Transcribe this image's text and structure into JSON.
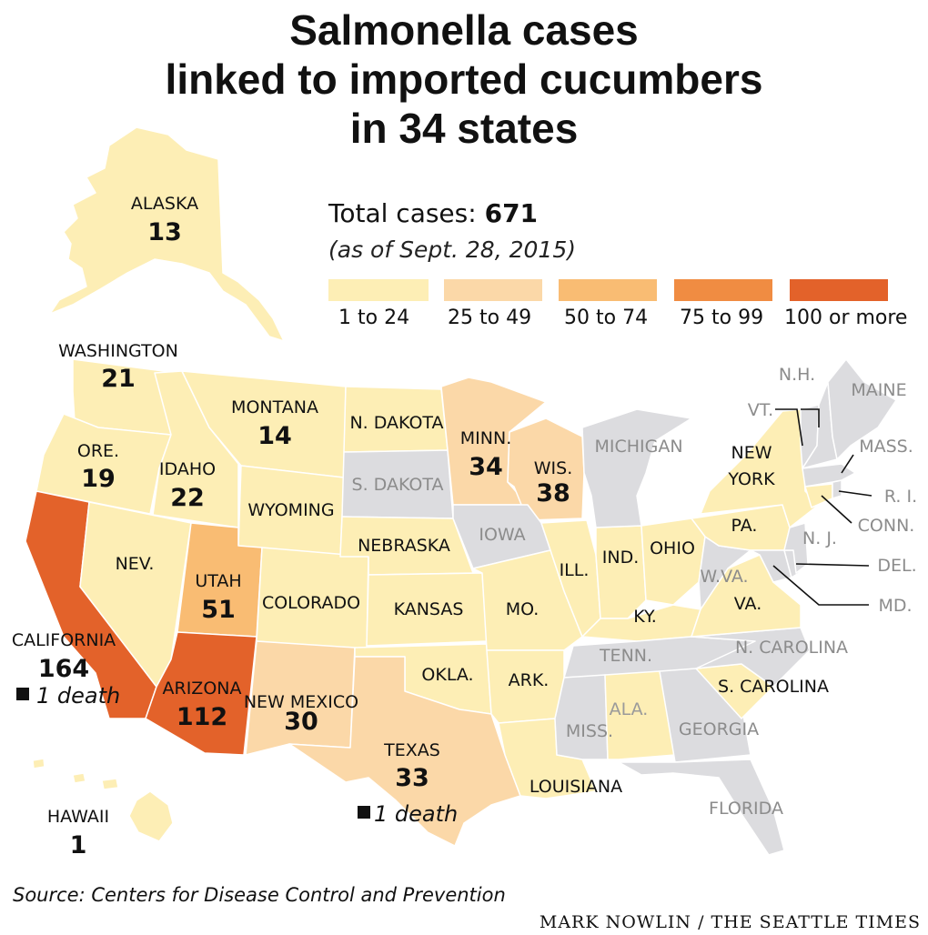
{
  "title": {
    "line1": "Salmonella cases",
    "line2": "linked to imported cucumbers",
    "line3": "in 34 states"
  },
  "total": {
    "label": "Total cases:",
    "value": "671",
    "as_of": "(as of Sept. 28, 2015)"
  },
  "legend": [
    {
      "label": "1 to 24",
      "color": "#fdeeb5"
    },
    {
      "label": "25 to 49",
      "color": "#fbd8a8"
    },
    {
      "label": "50 to 74",
      "color": "#f9bc73"
    },
    {
      "label": "75 to 99",
      "color": "#f08c42"
    },
    {
      "label": "100 or more",
      "color": "#e3622a"
    }
  ],
  "no_case_color": "#dcdcdf",
  "states": [
    {
      "id": "AK",
      "name": "ALASKA",
      "cases": 13,
      "shown": "13"
    },
    {
      "id": "WA",
      "name": "WASHINGTON",
      "cases": 21,
      "shown": "21"
    },
    {
      "id": "OR",
      "name": "ORE.",
      "cases": 19,
      "shown": "19"
    },
    {
      "id": "ID",
      "name": "IDAHO",
      "cases": 22,
      "shown": "22"
    },
    {
      "id": "MT",
      "name": "MONTANA",
      "cases": 14,
      "shown": "14"
    },
    {
      "id": "CA",
      "name": "CALIFORNIA",
      "cases": 164,
      "shown": "164",
      "note": "1 death"
    },
    {
      "id": "AZ",
      "name": "ARIZONA",
      "cases": 112,
      "shown": "112"
    },
    {
      "id": "UT",
      "name": "UTAH",
      "cases": 51,
      "shown": "51"
    },
    {
      "id": "NM",
      "name": "NEW MEXICO",
      "cases": 30,
      "shown": "30"
    },
    {
      "id": "TX",
      "name": "TEXAS",
      "cases": 33,
      "shown": "33",
      "note": "1 death"
    },
    {
      "id": "MN",
      "name": "MINN.",
      "cases": 34,
      "shown": "34"
    },
    {
      "id": "WI",
      "name": "WIS.",
      "cases": 38,
      "shown": "38"
    },
    {
      "id": "HI",
      "name": "HAWAII",
      "cases": 1,
      "shown": "1"
    },
    {
      "id": "NV",
      "name": "NEV.",
      "category": "1 to 24"
    },
    {
      "id": "WY",
      "name": "WYOMING",
      "category": "1 to 24"
    },
    {
      "id": "CO",
      "name": "COLORADO",
      "category": "1 to 24"
    },
    {
      "id": "ND",
      "name": "N. DAKOTA",
      "category": "1 to 24"
    },
    {
      "id": "NE",
      "name": "NEBRASKA",
      "category": "1 to 24"
    },
    {
      "id": "KS",
      "name": "KANSAS",
      "category": "1 to 24"
    },
    {
      "id": "OK",
      "name": "OKLA.",
      "category": "1 to 24"
    },
    {
      "id": "MO",
      "name": "MO.",
      "category": "1 to 24"
    },
    {
      "id": "AR",
      "name": "ARK.",
      "category": "1 to 24"
    },
    {
      "id": "LA",
      "name": "LOUISIANA",
      "category": "1 to 24"
    },
    {
      "id": "IL",
      "name": "ILL.",
      "category": "1 to 24"
    },
    {
      "id": "IN",
      "name": "IND.",
      "category": "1 to 24"
    },
    {
      "id": "OH",
      "name": "OHIO",
      "category": "1 to 24"
    },
    {
      "id": "KY",
      "name": "KY.",
      "category": "1 to 24"
    },
    {
      "id": "VA",
      "name": "VA.",
      "category": "1 to 24"
    },
    {
      "id": "PA",
      "name": "PA.",
      "category": "1 to 24"
    },
    {
      "id": "NY",
      "name": "NEW YORK",
      "category": "1 to 24"
    },
    {
      "id": "AL",
      "name": "ALA.",
      "category": "1 to 24"
    },
    {
      "id": "SC",
      "name": "S. CAROLINA",
      "category": "1 to 24"
    },
    {
      "id": "SD",
      "name": "S. DAKOTA",
      "category": "none"
    },
    {
      "id": "IA",
      "name": "IOWA",
      "category": "none"
    },
    {
      "id": "MI",
      "name": "MICHIGAN",
      "category": "none"
    },
    {
      "id": "TN",
      "name": "TENN.",
      "category": "none"
    },
    {
      "id": "MS",
      "name": "MISS.",
      "category": "none"
    },
    {
      "id": "GA",
      "name": "GEORGIA",
      "category": "none"
    },
    {
      "id": "FL",
      "name": "FLORIDA",
      "category": "none"
    },
    {
      "id": "NC",
      "name": "N. CAROLINA",
      "category": "none"
    },
    {
      "id": "WV",
      "name": "W.VA.",
      "category": "none"
    },
    {
      "id": "NJ",
      "name": "N. J.",
      "category": "none"
    },
    {
      "id": "DE",
      "name": "DEL.",
      "category": "none"
    },
    {
      "id": "MD",
      "name": "MD.",
      "category": "none"
    },
    {
      "id": "NH",
      "name": "N.H.",
      "category": "none"
    },
    {
      "id": "VT",
      "name": "VT.",
      "category": "none"
    },
    {
      "id": "ME",
      "name": "MAINE",
      "category": "none"
    },
    {
      "id": "MA",
      "name": "MASS.",
      "category": "none"
    },
    {
      "id": "RI",
      "name": "R. I.",
      "category": "none"
    },
    {
      "id": "CT",
      "name": "CONN.",
      "category": "1 to 24"
    }
  ],
  "source": "Source: Centers for Disease Control and Prevention",
  "credit": "MARK NOWLIN / THE SEATTLE TIMES"
}
